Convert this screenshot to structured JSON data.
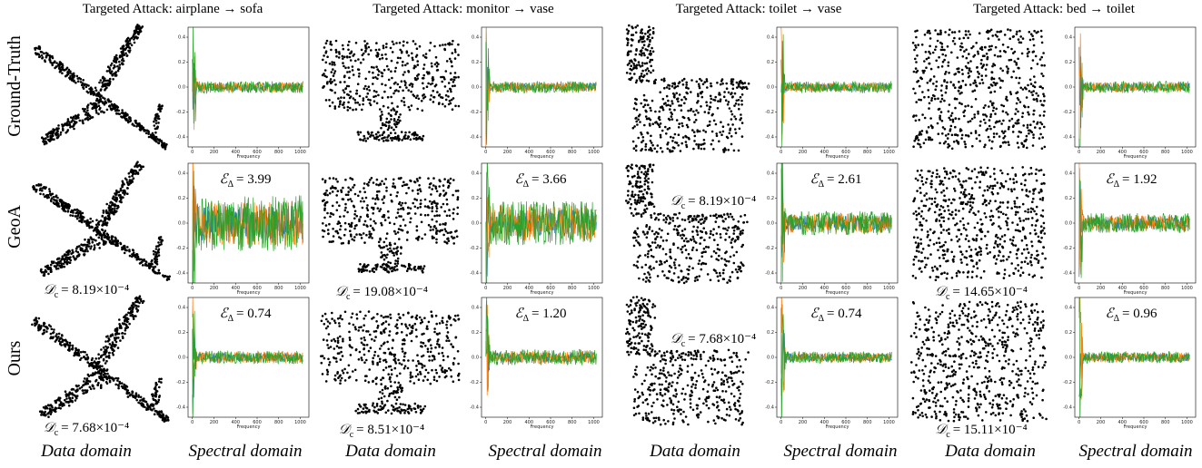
{
  "column_titles": [
    "Targeted Attack: airplane → sofa",
    "Targeted Attack: monitor → vase",
    "Targeted Attack: toilet → vase",
    "Targeted Attack: bed → toilet"
  ],
  "row_labels": [
    "Ground-Truth",
    "GeoA",
    "Ours"
  ],
  "domain_labels": [
    "Data domain",
    "Spectral domain",
    "Data domain",
    "Spectral domain",
    "Data domain",
    "Spectral domain",
    "Data domain",
    "Spectral domain"
  ],
  "metric_symbols": {
    "data": {
      "symbol": "𝒟",
      "sub": "c"
    },
    "spectral": {
      "symbol": "ℰ",
      "sub": "Δ"
    }
  },
  "geoa": {
    "data_metric": [
      "= 8.19×10⁻⁴",
      "= 19.08×10⁻⁴",
      "= 8.19×10⁻⁴",
      "= 14.65×10⁻⁴"
    ],
    "spectral_metric": [
      "= 3.99",
      "= 3.66",
      "= 2.61",
      "= 1.92"
    ]
  },
  "ours": {
    "data_metric": [
      "= 7.68×10⁻⁴",
      "= 8.51×10⁻⁴",
      "= 7.68×10⁻⁴",
      "= 15.11×10⁻⁴"
    ],
    "spectral_metric": [
      "= 0.74",
      "= 1.20",
      "= 0.74",
      "= 0.96"
    ]
  },
  "spectral_axes": {
    "xlabel": "Frequency",
    "xlim": [
      -40,
      1080
    ],
    "ylim": [
      -0.48,
      0.48
    ],
    "xticks": [
      0,
      200,
      400,
      600,
      800,
      1000
    ],
    "yticks": [
      0.4,
      0.2,
      {
        "value": 0,
        "label": "0.0"
      },
      -0.2,
      -0.4
    ]
  }
}
